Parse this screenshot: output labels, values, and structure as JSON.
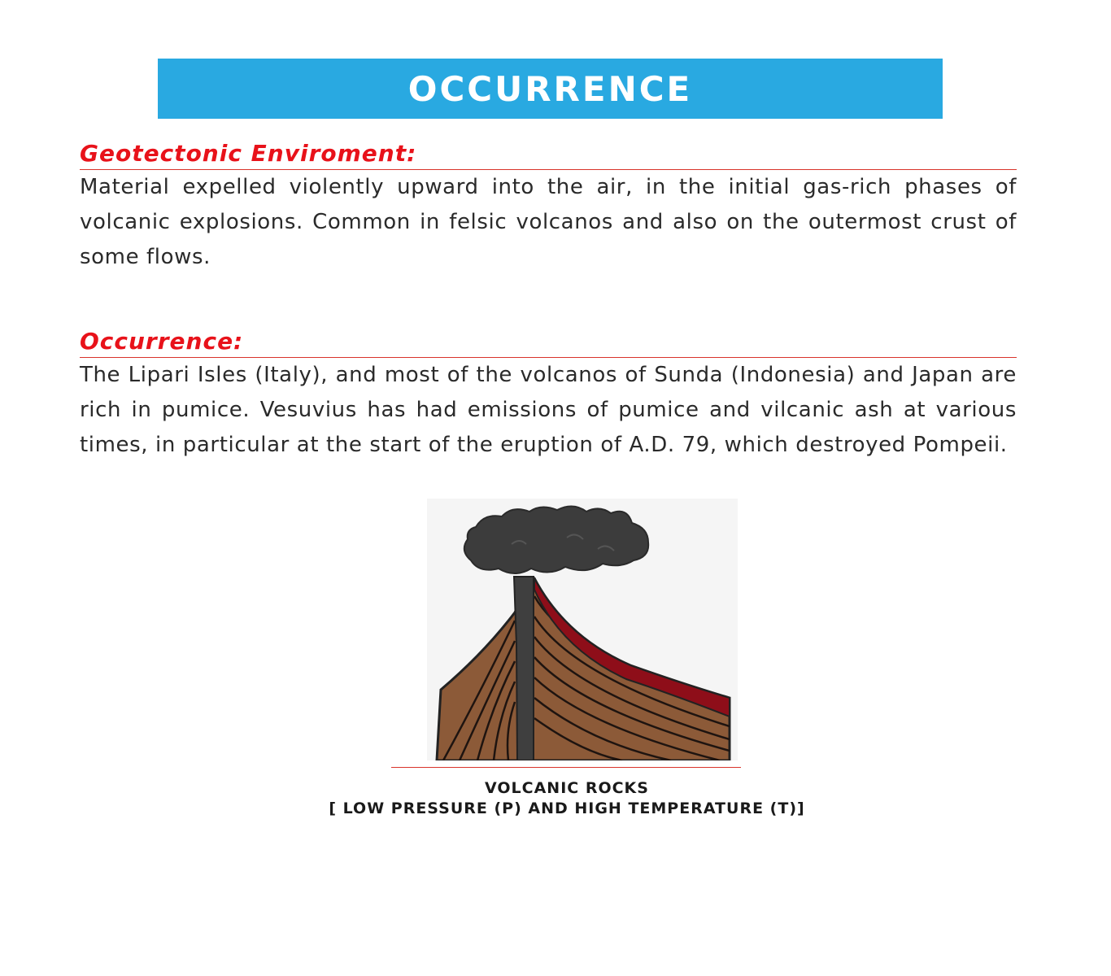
{
  "banner": {
    "title": "OCCURRENCE",
    "background_color": "#29a9e1"
  },
  "sections": [
    {
      "heading": "Geotectonic Enviroment:",
      "text": "Material expelled violently upward into the air, in the initial gas-rich phases of volcanic explosions. Common in felsic volcanos and also on the outermost crust of some flows."
    },
    {
      "heading": "Occurrence:",
      "text": "The Lipari Isles (Italy), and most of the volcanos of Sunda (Indonesia) and Japan are rich in pumice. Vesuvius has had emissions of pumice and vilcanic ash at various times, in particular at the start of the eruption of A.D. 79, which destroyed Pompeii."
    }
  ],
  "heading_color": "#e8121a",
  "figure": {
    "icon": "volcano-illustration",
    "caption_line1": "VOLCANIC ROCKS",
    "caption_line2": "[ LOW PRESSURE (P) AND HIGH TEMPERATURE (T)]"
  }
}
